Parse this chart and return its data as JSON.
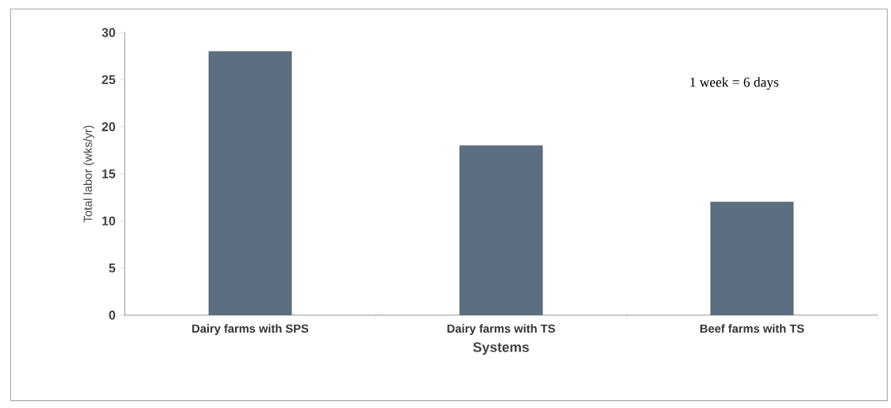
{
  "chart_data": {
    "type": "bar",
    "categories": [
      "Dairy farms with SPS",
      "Dairy farms with TS",
      "Beef farms with TS"
    ],
    "values": [
      28,
      18,
      12
    ],
    "color": "#5b6f80",
    "xlabel": "Systems",
    "ylabel": "Total labor (wks/yr)",
    "ylim": [
      0,
      30
    ],
    "yticks": [
      0,
      5,
      10,
      15,
      20,
      25,
      30
    ],
    "annotations": [
      "1 week = 6 days"
    ]
  }
}
